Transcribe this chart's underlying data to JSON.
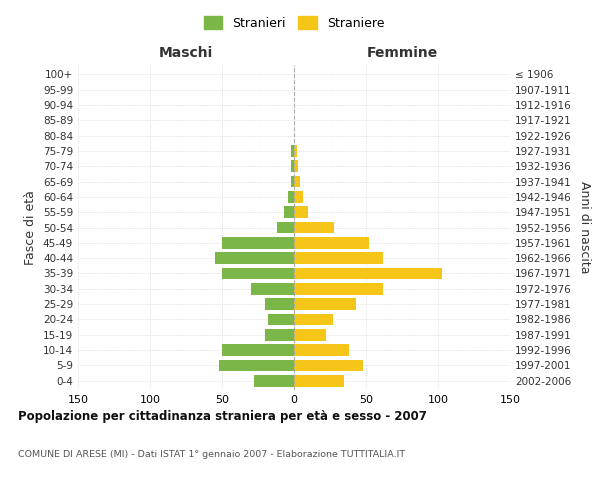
{
  "age_groups": [
    "0-4",
    "5-9",
    "10-14",
    "15-19",
    "20-24",
    "25-29",
    "30-34",
    "35-39",
    "40-44",
    "45-49",
    "50-54",
    "55-59",
    "60-64",
    "65-69",
    "70-74",
    "75-79",
    "80-84",
    "85-89",
    "90-94",
    "95-99",
    "100+"
  ],
  "birth_years": [
    "2002-2006",
    "1997-2001",
    "1992-1996",
    "1987-1991",
    "1982-1986",
    "1977-1981",
    "1972-1976",
    "1967-1971",
    "1962-1966",
    "1957-1961",
    "1952-1956",
    "1947-1951",
    "1942-1946",
    "1937-1941",
    "1932-1936",
    "1927-1931",
    "1922-1926",
    "1917-1921",
    "1912-1916",
    "1907-1911",
    "≤ 1906"
  ],
  "maschi": [
    28,
    52,
    50,
    20,
    18,
    20,
    30,
    50,
    55,
    50,
    12,
    7,
    4,
    2,
    2,
    2,
    0,
    0,
    0,
    0,
    0
  ],
  "femmine": [
    35,
    48,
    38,
    22,
    27,
    43,
    62,
    103,
    62,
    52,
    28,
    10,
    6,
    4,
    3,
    2,
    0,
    0,
    0,
    0,
    0
  ],
  "color_maschi": "#7ab648",
  "color_femmine": "#f5c518",
  "title": "Popolazione per cittadinanza straniera per età e sesso - 2007",
  "subtitle": "COMUNE DI ARESE (MI) - Dati ISTAT 1° gennaio 2007 - Elaborazione TUTTITALIA.IT",
  "xlabel_left": "Maschi",
  "xlabel_right": "Femmine",
  "ylabel_left": "Fasce di età",
  "ylabel_right": "Anni di nascita",
  "legend_maschi": "Stranieri",
  "legend_femmine": "Straniere",
  "xlim": 150,
  "background_color": "#ffffff",
  "bar_color_maschi_edge": "#6a9e3a",
  "bar_color_femmine_edge": "#e0b010"
}
